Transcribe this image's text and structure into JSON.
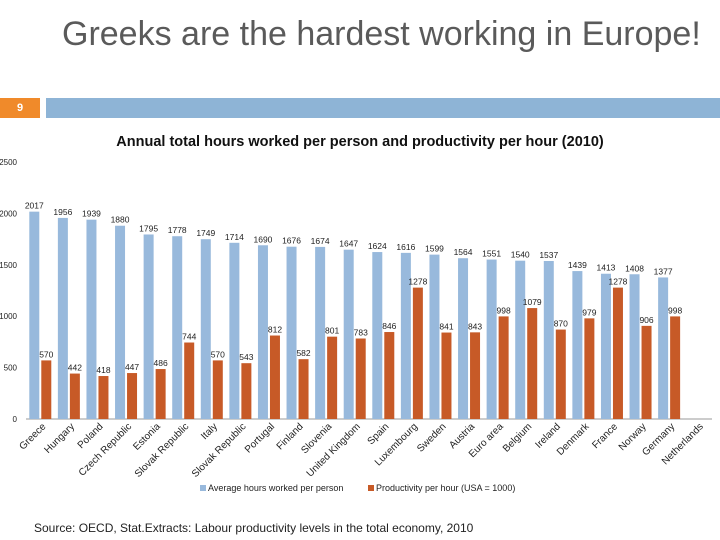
{
  "slide": {
    "title": "Greeks are the hardest working in Europe!",
    "page_number": "9",
    "source": "Source: OECD, Stat.Extracts: Labour productivity levels in the total economy, 2010"
  },
  "colors": {
    "accent_orange": "#f08a2a",
    "accent_blue": "#8eb4d6",
    "hours_bar": "#98b9dc",
    "productivity_bar": "#c75a27"
  },
  "chart_data": {
    "type": "bar",
    "title": "Annual total hours worked per person and productivity per hour (2010)",
    "xlabel": "",
    "ylabel": "",
    "ylim": [
      0,
      2500
    ],
    "yticks": [
      0,
      500,
      1000,
      1500,
      2000,
      2500
    ],
    "grid": false,
    "legend_position": "bottom",
    "categories": [
      "Greece",
      "Hungary",
      "Poland",
      "Czech Republic",
      "Estonia",
      "Slovak Republic",
      "Italy",
      "Slovak Republic",
      "Portugal",
      "Finland",
      "Slovenia",
      "United Kingdom",
      "Spain",
      "Luxembourg",
      "Sweden",
      "Austria",
      "Euro area",
      "Belgium",
      "Ireland",
      "Denmark",
      "France",
      "Norway",
      "Germany",
      "Netherlands"
    ],
    "series": [
      {
        "name": "Average hours worked per person",
        "values": [
          2017,
          1956,
          1939,
          1880,
          1795,
          1778,
          1749,
          1714,
          1690,
          1676,
          1674,
          1647,
          1624,
          1616,
          1599,
          1564,
          1551,
          1540,
          1537,
          1439,
          1413,
          1408,
          1377,
          null
        ]
      },
      {
        "name": "Productivity per hour (USA = 1000)",
        "values": [
          570,
          442,
          418,
          447,
          486,
          744,
          570,
          543,
          812,
          582,
          801,
          783,
          846,
          1278,
          841,
          843,
          998,
          1079,
          870,
          979,
          1278,
          906,
          998,
          null
        ]
      }
    ]
  }
}
